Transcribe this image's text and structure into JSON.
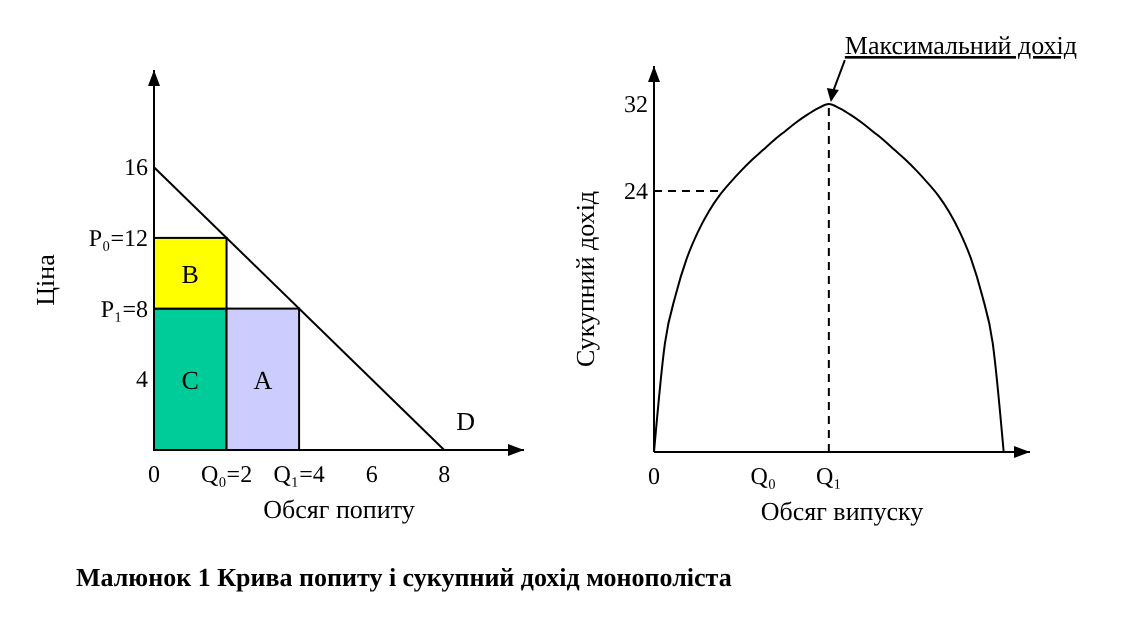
{
  "chart_data": [
    {
      "type": "line",
      "xlabel": "Обсяг попиту",
      "ylabel": "Ціна",
      "xlim": [
        0,
        10.2
      ],
      "ylim": [
        0,
        21.5
      ],
      "xticks": [
        0,
        {
          "value": 2,
          "label": "Q₀=2"
        },
        {
          "value": 4,
          "label": "Q₁=4"
        },
        6,
        8
      ],
      "yticks": [
        4,
        {
          "value": 8,
          "label": "P₁=8"
        },
        {
          "value": 12,
          "label": "P₀=12"
        },
        16
      ],
      "stacked": true,
      "series": [
        {
          "name": "C",
          "type": "bar",
          "color": "#00cc99",
          "x": [
            1,
            3
          ],
          "values": [
            8,
            0
          ]
        },
        {
          "name": "A",
          "type": "bar",
          "color": "#ccccff",
          "x": [
            1,
            3
          ],
          "values": [
            0,
            8
          ]
        },
        {
          "name": "B",
          "type": "bar",
          "color": "#ffff00",
          "x": [
            1,
            3
          ],
          "values": [
            4,
            0
          ]
        },
        {
          "name": "D",
          "color": "#000000",
          "x": [
            0,
            8
          ],
          "values": [
            16,
            0
          ]
        }
      ],
      "annotations": [
        "Малюнок 1 Крива попиту і сукупний дохід монополіста"
      ]
    },
    {
      "type": "line",
      "xlabel": "Обсяг випуску",
      "ylabel": "Сукупний дохід",
      "ylim": [
        0,
        35.5
      ],
      "categories": [
        "0",
        null,
        null,
        null,
        null,
        null,
        null,
        null,
        null,
        null,
        "Q₀",
        null,
        null,
        null,
        null,
        null,
        "Q₁",
        null,
        null,
        null,
        null,
        null,
        null,
        null,
        null,
        null,
        null,
        null,
        null,
        null,
        null,
        null,
        null
      ],
      "yticks": [
        24,
        32
      ],
      "series": [
        {
          "color": "#000000",
          "values": [
            0,
            10,
            14.5,
            17.8,
            20.2,
            22.1,
            23.6,
            24.8,
            25.9,
            26.9,
            27.8,
            28.7,
            29.5,
            30.3,
            31,
            31.6,
            32,
            31.6,
            31,
            30.3,
            29.5,
            28.7,
            27.8,
            26.9,
            25.9,
            24.8,
            23.6,
            22.1,
            20.2,
            17.8,
            14.5,
            10,
            0
          ]
        },
        {
          "color": "#000000",
          "line_style": "dashed",
          "values": [
            24,
            24,
            24,
            24,
            24,
            24,
            24,
            null,
            null,
            null,
            null,
            null,
            null,
            null,
            null,
            null,
            null,
            null,
            null,
            null,
            null,
            null,
            null,
            null,
            null,
            null,
            null,
            null,
            null,
            null,
            null,
            null,
            null
          ]
        }
      ],
      "ref_lines": [
        {
          "axis": "x",
          "value": "Q₁",
          "line_style": "dashed"
        }
      ],
      "annotations": [
        {
          "text": "Максимальний дохід",
          "x": "Q₁",
          "y": 32
        }
      ]
    }
  ]
}
